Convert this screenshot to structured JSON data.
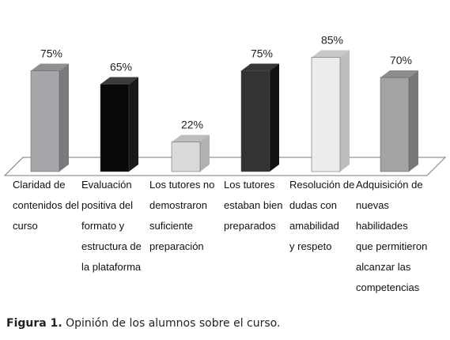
{
  "chart_data": {
    "type": "bar",
    "categories": [
      "Claridad de\ncontenidos del\ncurso",
      "Evaluación\npositiva del\nformato y\nestructura de\nla plataforma",
      "Los tutores no\ndemostraron\nsuficiente\npreparación",
      "Los tutores\nestaban bien\npreparados",
      "Resolución de\ndudas con\namabilidad\ny respeto",
      "Adquisición de\nnuevas\nhabilidades\nque permitieron\nalcanzar las\ncompetencias"
    ],
    "values": [
      75,
      65,
      22,
      75,
      85,
      70
    ],
    "value_labels": [
      "75%",
      "65%",
      "22%",
      "75%",
      "85%",
      "70%"
    ],
    "bar_colors": [
      "#a7a7ab",
      "#080808",
      "#d9d9db",
      "#333335",
      "#ececef",
      "#a3a3a6"
    ],
    "bar_side_colors": [
      "#7b7b7f",
      "#1a1a1a",
      "#b1b1b3",
      "#131314",
      "#bdbdc0",
      "#78787b"
    ],
    "ylim": [
      0,
      100
    ],
    "grid": false,
    "legend": "none",
    "style": "3d-column"
  },
  "caption": {
    "prefix": "Figura 1.",
    "text": " Opinión de los alumnos sobre el curso."
  }
}
